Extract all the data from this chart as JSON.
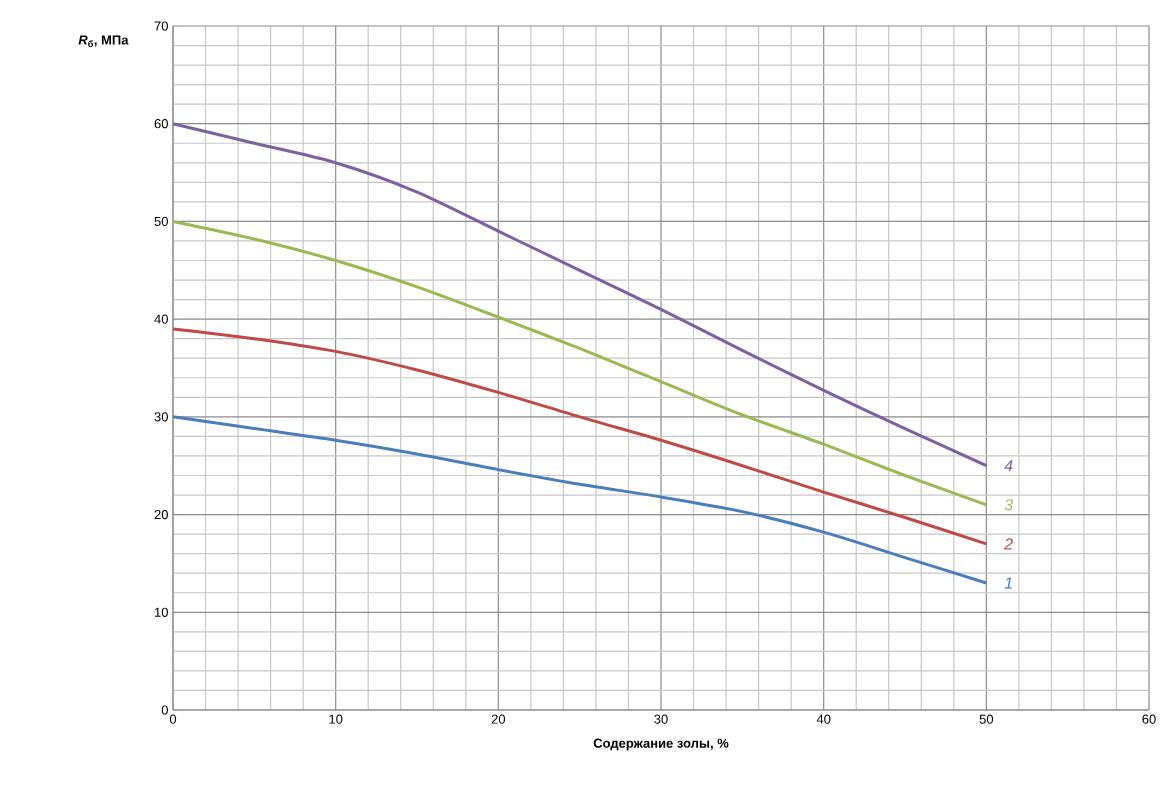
{
  "chart_data": {
    "type": "line",
    "xlabel": "Содержание золы,  %",
    "ylabel": "*R*$_{б}$, МПа",
    "x": [
      0,
      5,
      10,
      15,
      20,
      25,
      30,
      35,
      40,
      45,
      50
    ],
    "xlim": [
      0,
      60
    ],
    "xticks": [
      0,
      10,
      20,
      30,
      40,
      50,
      60
    ],
    "ylim": [
      0,
      70
    ],
    "yticks": [
      0,
      10,
      20,
      30,
      40,
      50,
      60,
      70
    ],
    "grid": true,
    "marker": "none",
    "line_style": "solid",
    "series": [
      {
        "name": "1",
        "color": "#4a7ebb",
        "values": [
          30,
          28.8,
          27.6,
          26.2,
          24.6,
          23.1,
          21.8,
          20.3,
          18.2,
          15.6,
          13
        ]
      },
      {
        "name": "2",
        "color": "#be4b48",
        "values": [
          39,
          38,
          36.7,
          34.8,
          32.5,
          30,
          27.6,
          25,
          22.3,
          19.7,
          17
        ]
      },
      {
        "name": "3",
        "color": "#98b954",
        "values": [
          50,
          48.2,
          46,
          43.3,
          40.2,
          37,
          33.6,
          30.2,
          27.2,
          24,
          21
        ]
      },
      {
        "name": "4",
        "color": "#7d60a0",
        "values": [
          60,
          58,
          56,
          53,
          49,
          45,
          41,
          36.8,
          32.7,
          28.8,
          25
        ]
      }
    ]
  }
}
